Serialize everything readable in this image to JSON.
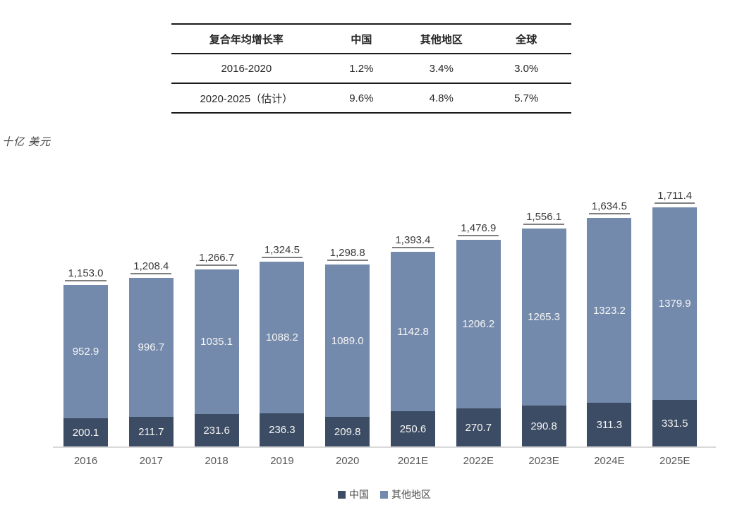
{
  "table": {
    "headers": [
      "复合年均增长率",
      "中国",
      "其他地区",
      "全球"
    ],
    "rows": [
      {
        "label": "2016-2020",
        "values": [
          "1.2%",
          "3.4%",
          "3.0%"
        ]
      },
      {
        "label": "2020-2025（估计）",
        "values": [
          "9.6%",
          "4.8%",
          "5.7%"
        ]
      }
    ]
  },
  "unit_label": "十亿 美元",
  "chart_data": {
    "type": "bar",
    "stacked": true,
    "title": "",
    "xlabel": "",
    "ylabel": "十亿 美元",
    "grid": false,
    "ylim": [
      0,
      1800
    ],
    "legend_position": "bottom",
    "categories": [
      "2016",
      "2017",
      "2018",
      "2019",
      "2020",
      "2021E",
      "2022E",
      "2023E",
      "2024E",
      "2025E"
    ],
    "series": [
      {
        "name": "中国",
        "color": "#3c4c64",
        "values": [
          200.1,
          211.7,
          231.6,
          236.3,
          209.8,
          250.6,
          270.7,
          290.8,
          311.3,
          331.5
        ]
      },
      {
        "name": "其他地区",
        "color": "#748aac",
        "values": [
          952.9,
          996.7,
          1035.1,
          1088.2,
          1089.0,
          1142.8,
          1206.2,
          1265.3,
          1323.2,
          1379.9
        ]
      }
    ],
    "totals": [
      "1,153.0",
      "1,208.4",
      "1,266.7",
      "1,324.5",
      "1,298.8",
      "1,393.4",
      "1,476.9",
      "1,556.1",
      "1,634.5",
      "1,711.4"
    ]
  },
  "colors": {
    "china": "#3c4c64",
    "other": "#748aac",
    "axis": "#d9d9d9",
    "total_underline": "#7f7f7f",
    "segment_text": "#f5f5f5"
  }
}
